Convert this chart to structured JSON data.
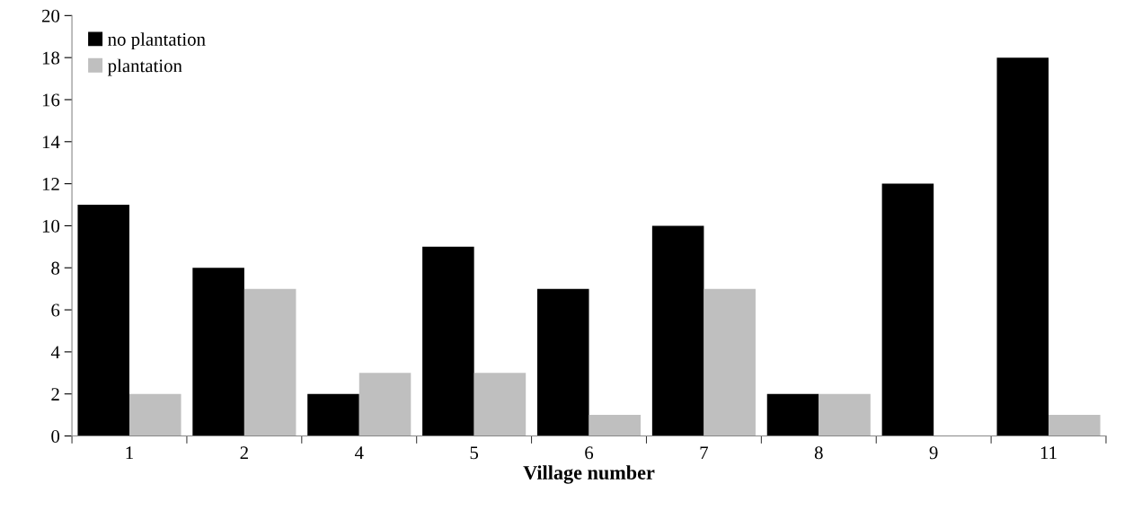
{
  "chart_data": {
    "type": "bar",
    "xlabel": "Village number",
    "categories": [
      "1",
      "2",
      "4",
      "5",
      "6",
      "7",
      "8",
      "9",
      "11"
    ],
    "series": [
      {
        "name": "no plantation",
        "color": "#000000",
        "values": [
          11,
          8,
          2,
          9,
          7,
          10,
          2,
          12,
          18
        ]
      },
      {
        "name": "plantation",
        "color": "#bfbfbf",
        "values": [
          2,
          7,
          3,
          3,
          1,
          7,
          2,
          0,
          1
        ]
      }
    ],
    "ylim": [
      0,
      20
    ],
    "yticks": [
      0,
      2,
      4,
      6,
      8,
      10,
      12,
      14,
      16,
      18,
      20
    ],
    "grid": false,
    "legend": "top left"
  }
}
